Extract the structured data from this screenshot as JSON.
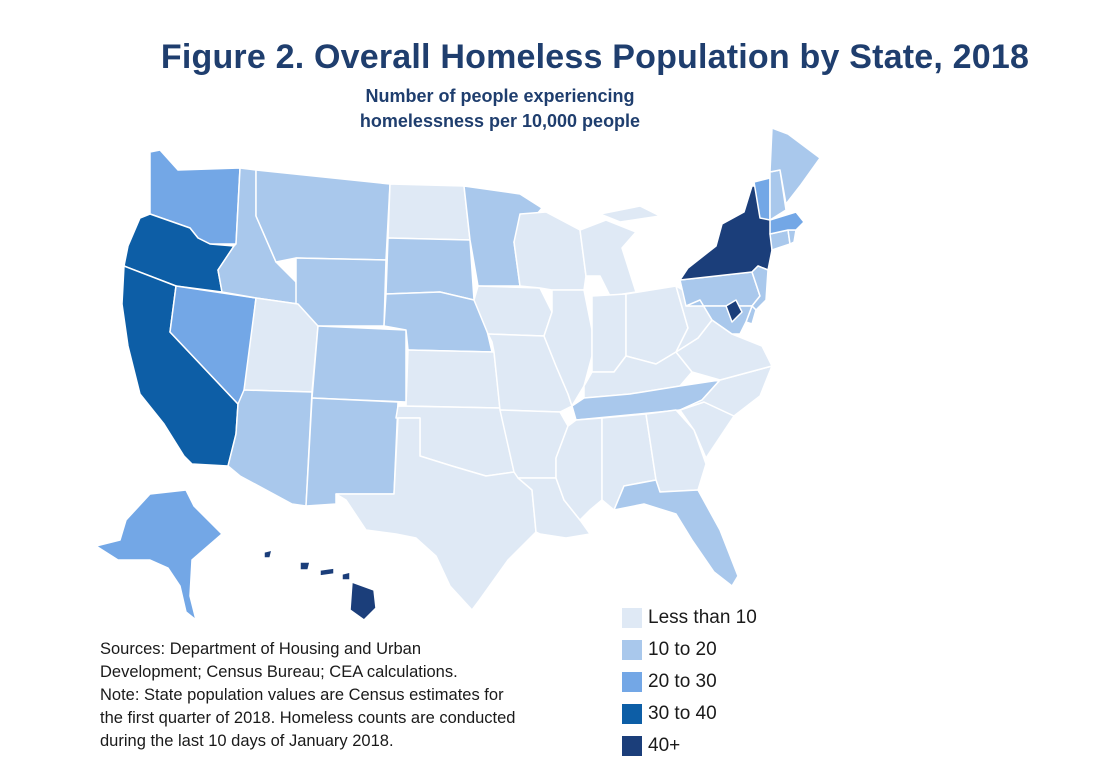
{
  "title": "Figure 2. Overall Homeless Population by State, 2018",
  "subtitle": [
    "Number of people experiencing",
    "homelessness per 10,000 people"
  ],
  "legend": [
    {
      "label": "Less than 10",
      "color": "#dfe9f5"
    },
    {
      "label": "10 to 20",
      "color": "#a9c8ec"
    },
    {
      "label": "20 to 30",
      "color": "#73a7e6"
    },
    {
      "label": "30 to 40",
      "color": "#0d5ea6"
    },
    {
      "label": "40+",
      "color": "#1b3e7a"
    }
  ],
  "notes": [
    "Sources: Department of Housing and Urban",
    "Development; Census Bureau; CEA calculations.",
    "Note: State population values are Census estimates for",
    "the first quarter of 2018. Homeless counts are conducted",
    "during the last 10 days of January 2018."
  ],
  "states": [
    {
      "id": "WA",
      "bin": 2
    },
    {
      "id": "OR",
      "bin": 3
    },
    {
      "id": "CA",
      "bin": 3
    },
    {
      "id": "NV",
      "bin": 2
    },
    {
      "id": "ID",
      "bin": 1
    },
    {
      "id": "MT",
      "bin": 1
    },
    {
      "id": "WY",
      "bin": 1
    },
    {
      "id": "UT",
      "bin": 0
    },
    {
      "id": "AZ",
      "bin": 1
    },
    {
      "id": "CO",
      "bin": 1
    },
    {
      "id": "NM",
      "bin": 1
    },
    {
      "id": "ND",
      "bin": 0
    },
    {
      "id": "SD",
      "bin": 1
    },
    {
      "id": "NE",
      "bin": 1
    },
    {
      "id": "KS",
      "bin": 0
    },
    {
      "id": "OK",
      "bin": 0
    },
    {
      "id": "TX",
      "bin": 0
    },
    {
      "id": "MN",
      "bin": 1
    },
    {
      "id": "IA",
      "bin": 0
    },
    {
      "id": "MO",
      "bin": 0
    },
    {
      "id": "AR",
      "bin": 0
    },
    {
      "id": "LA",
      "bin": 0
    },
    {
      "id": "WI",
      "bin": 0
    },
    {
      "id": "IL",
      "bin": 0
    },
    {
      "id": "MI",
      "bin": 0
    },
    {
      "id": "IN",
      "bin": 0
    },
    {
      "id": "OH",
      "bin": 0
    },
    {
      "id": "KY",
      "bin": 0
    },
    {
      "id": "TN",
      "bin": 1
    },
    {
      "id": "MS",
      "bin": 0
    },
    {
      "id": "AL",
      "bin": 0
    },
    {
      "id": "GA",
      "bin": 0
    },
    {
      "id": "FL",
      "bin": 1
    },
    {
      "id": "SC",
      "bin": 0
    },
    {
      "id": "NC",
      "bin": 0
    },
    {
      "id": "VA",
      "bin": 0
    },
    {
      "id": "WV",
      "bin": 0
    },
    {
      "id": "PA",
      "bin": 1
    },
    {
      "id": "NY",
      "bin": 4
    },
    {
      "id": "NJ",
      "bin": 1
    },
    {
      "id": "DE",
      "bin": 1
    },
    {
      "id": "MD",
      "bin": 1
    },
    {
      "id": "DC",
      "bin": 4
    },
    {
      "id": "CT",
      "bin": 1
    },
    {
      "id": "RI",
      "bin": 1
    },
    {
      "id": "MA",
      "bin": 2
    },
    {
      "id": "VT",
      "bin": 2
    },
    {
      "id": "NH",
      "bin": 1
    },
    {
      "id": "ME",
      "bin": 1
    },
    {
      "id": "AK",
      "bin": 2
    },
    {
      "id": "HI",
      "bin": 4
    }
  ]
}
